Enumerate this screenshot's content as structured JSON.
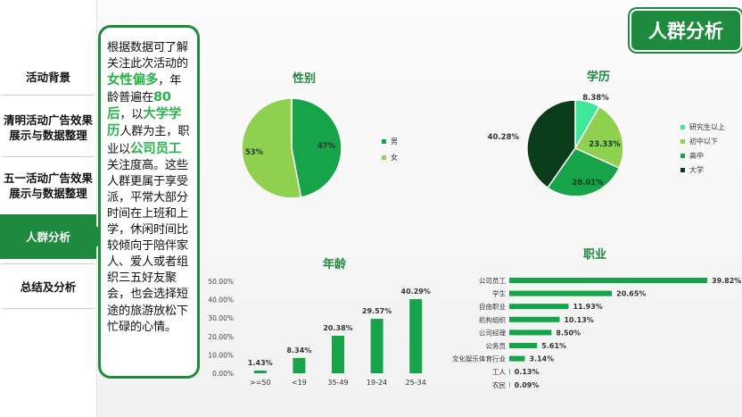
{
  "title": "人群分析",
  "sidebar": {
    "items": [
      {
        "label": "活动背景"
      },
      {
        "label": "清明活动广告效果展示与数据整理"
      },
      {
        "label": "五一活动广告效果展示与数据整理"
      },
      {
        "label": "人群分析",
        "active": true
      },
      {
        "label": "总结及分析"
      }
    ]
  },
  "summary": {
    "t1": "根据数据可了解关注此次活动的",
    "h1": "女性偏多",
    "t2": "，年龄普遍在",
    "h2": "80后",
    "t3": "，以",
    "h3": "大学学历",
    "t4": "人群为主，职业以",
    "h4": "公司员工",
    "t5": "关注度高。这些人群更属于享受派，平常大部分时间在上班和上学，休闲时间比较倾向于陪伴家人、爱人或者组织三五好友聚会，也会选择短途的旅游放松下忙碌的心情。"
  },
  "colors": {
    "brand": "#1e8a3e",
    "green": "#16a34a",
    "light_green": "#8fd14f",
    "mint": "#3ee89a",
    "dark_green": "#0b3d1d",
    "highlight": "#27b34b"
  },
  "chart_data": [
    {
      "type": "pie",
      "title": "性别",
      "categories": [
        "男",
        "女"
      ],
      "values": [
        47,
        53
      ],
      "value_labels": [
        "47%",
        "53%"
      ],
      "colors": [
        "#16a34a",
        "#8fd14f"
      ],
      "legend": "right"
    },
    {
      "type": "pie",
      "title": "学历",
      "categories": [
        "研究生以上",
        "初中以下",
        "高中",
        "大学"
      ],
      "values": [
        8.38,
        23.33,
        28.01,
        40.28
      ],
      "value_labels": [
        "8.38%",
        "23.33%",
        "28.01%",
        "40.28%"
      ],
      "colors": [
        "#3ee89a",
        "#8fd14f",
        "#16a34a",
        "#0b3d1d"
      ],
      "legend": "right"
    },
    {
      "type": "bar",
      "title": "年龄",
      "categories": [
        ">=50",
        "<19",
        "35-49",
        "19-24",
        "25-34"
      ],
      "values": [
        1.43,
        8.34,
        20.38,
        29.57,
        40.29
      ],
      "value_labels": [
        "1.43%",
        "8.34%",
        "20.38%",
        "29.57%",
        "40.29%"
      ],
      "ylim": [
        0,
        50
      ],
      "yticks": [
        "0.00%",
        "10.00%",
        "20.00%",
        "30.00%",
        "40.00%",
        "50.00%"
      ],
      "color": "#16a34a"
    },
    {
      "type": "bar",
      "orientation": "horizontal",
      "title": "职业",
      "categories": [
        "公司员工",
        "学生",
        "自由职业",
        "机构组织",
        "公司经理",
        "公务员",
        "文化娱乐体育行业",
        "工人",
        "农民"
      ],
      "values": [
        39.82,
        20.65,
        11.93,
        10.13,
        8.5,
        5.61,
        3.14,
        0.13,
        0.09
      ],
      "value_labels": [
        "39.82%",
        "20.65%",
        "11.93%",
        "10.13%",
        "8.50%",
        "5.61%",
        "3.14%",
        "0.13%",
        "0.09%"
      ],
      "color": "#16a34a"
    }
  ]
}
